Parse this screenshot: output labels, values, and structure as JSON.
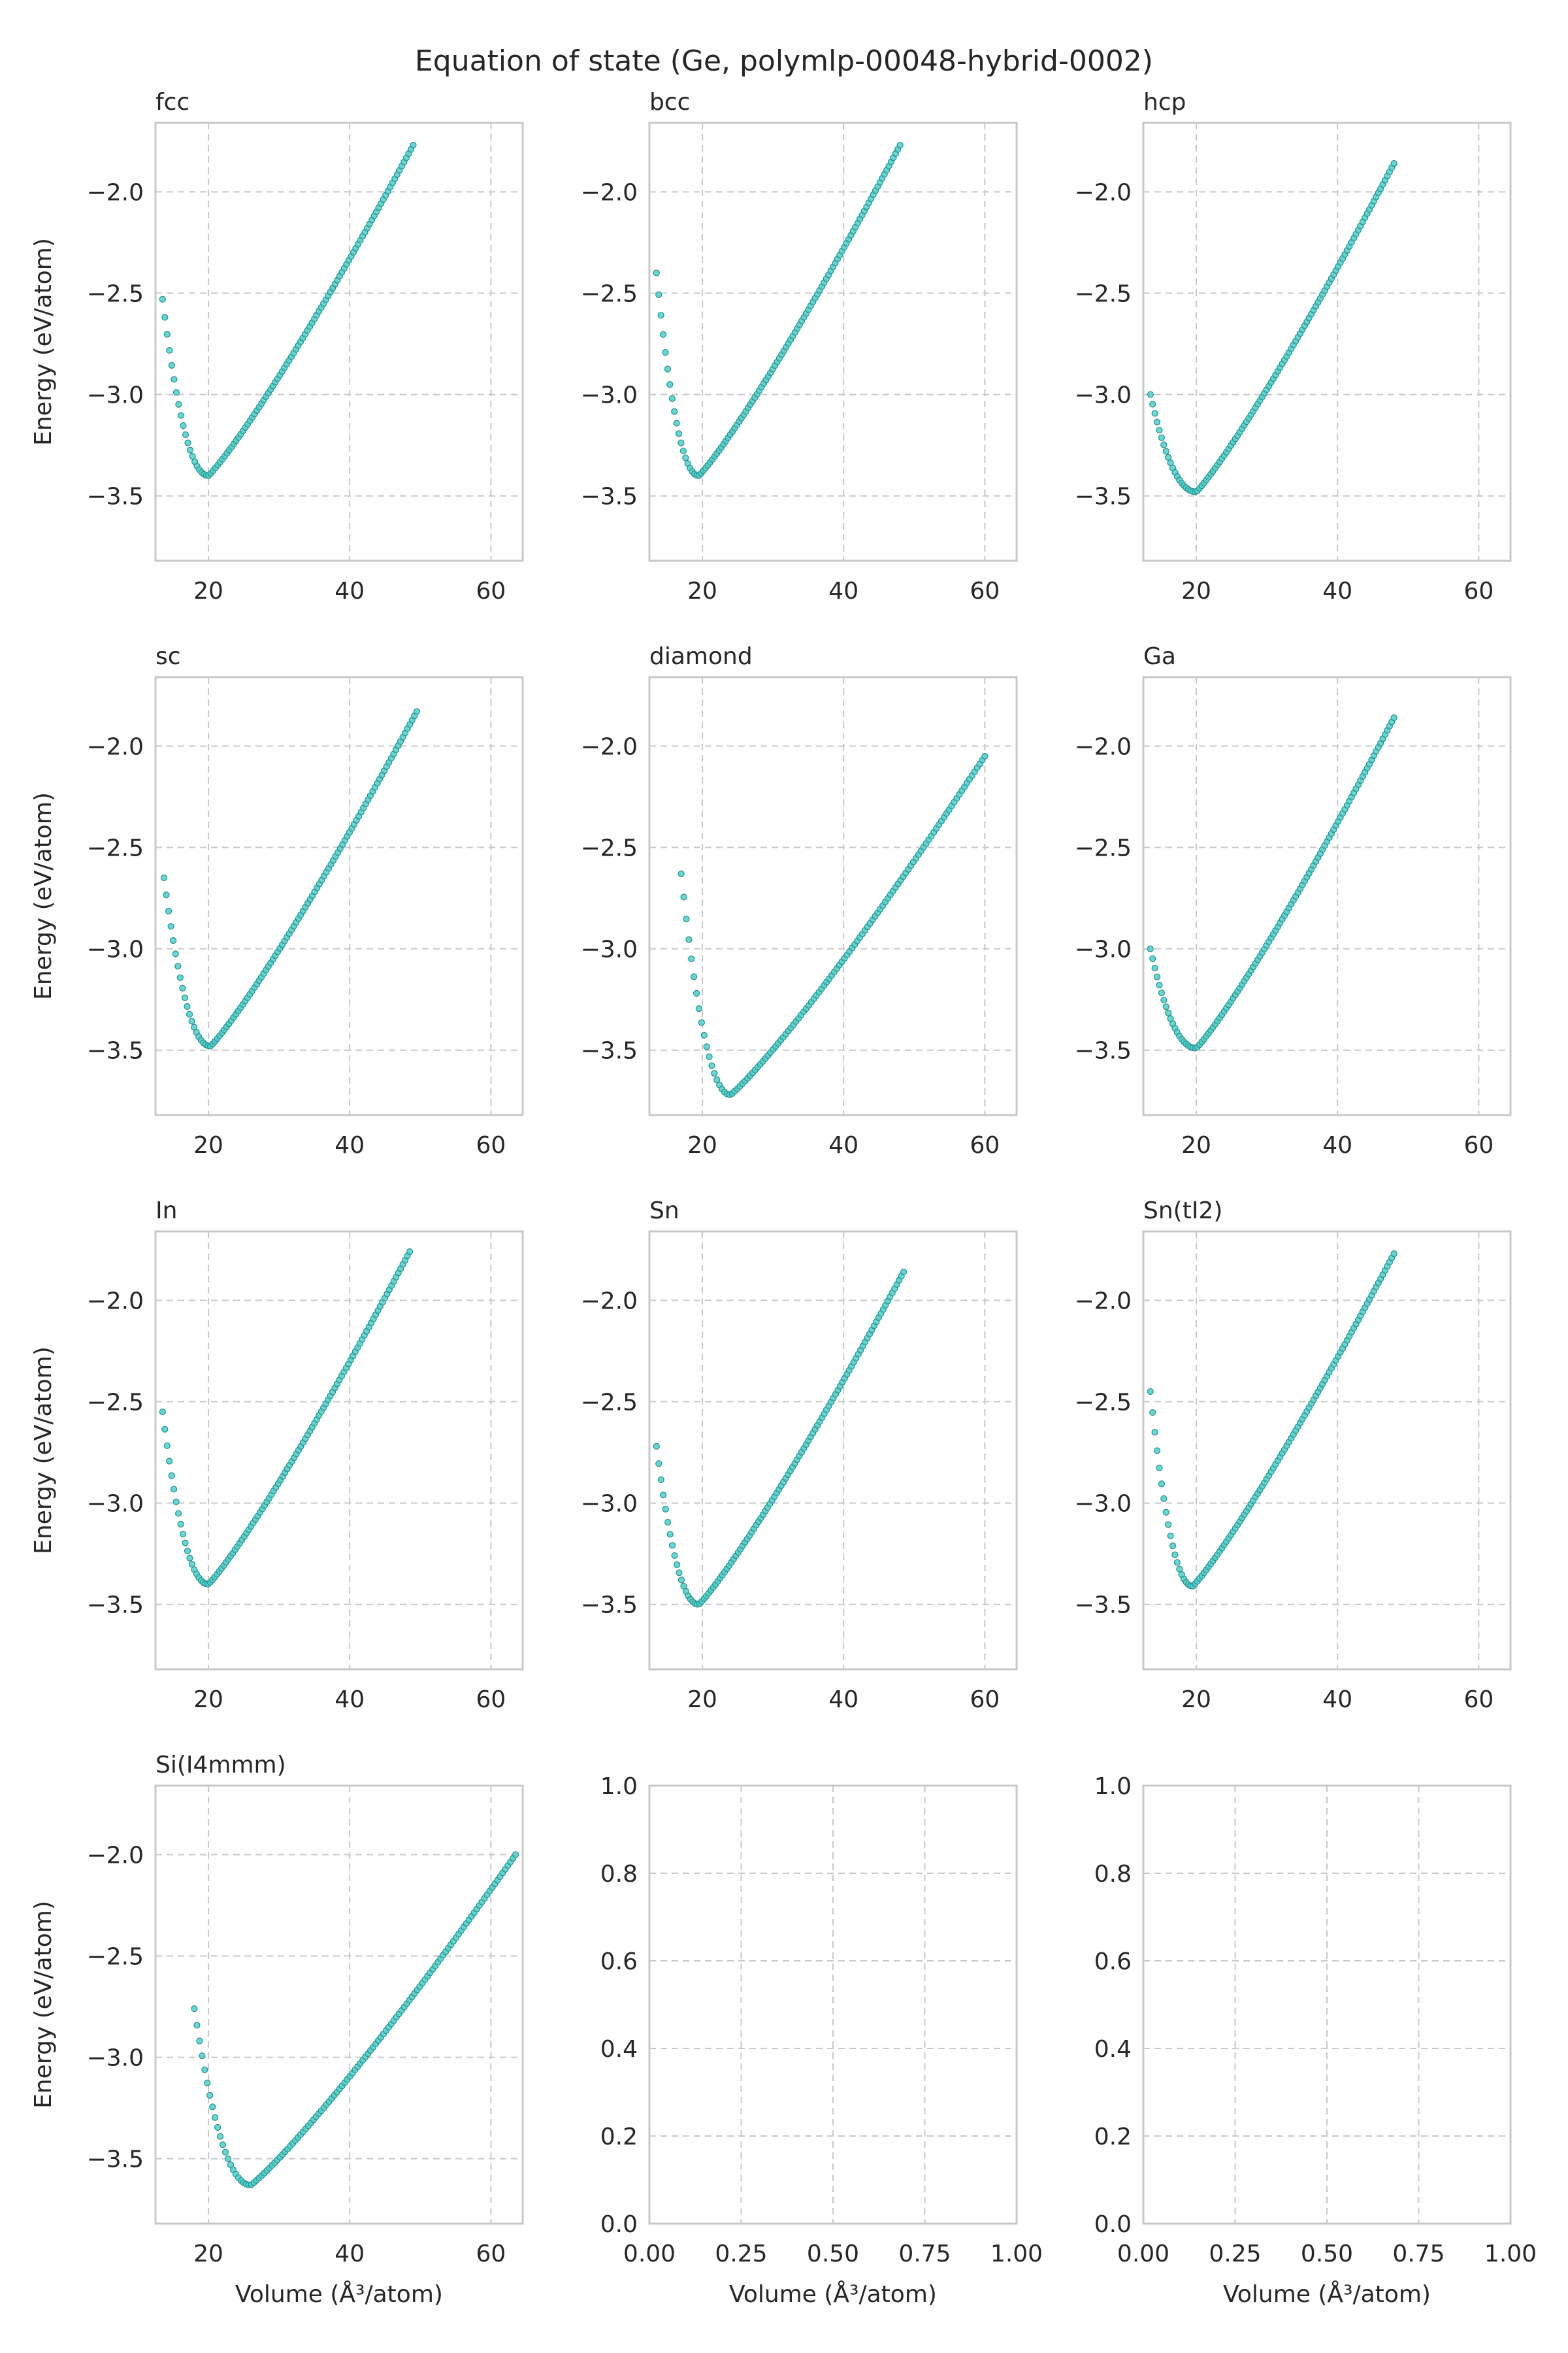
{
  "figure": {
    "title": "Equation of state (Ge, polymlp-00048-hybrid-0002)",
    "xlabel": "Volume (Å$^3$/atom)",
    "xlabel_display": "Volume (Å³/atom)",
    "ylabel": "Energy (eV/atom)"
  },
  "colors": {
    "marker_fill": "#48d1cc",
    "marker_edge": "#2a8f8a",
    "grid": "#c8c8c8",
    "frame": "#c8c8c8"
  },
  "chart_data": [
    {
      "type": "scatter",
      "title": "fcc",
      "xlim": [
        12.5,
        64.5
      ],
      "ylim": [
        -3.82,
        -1.66
      ],
      "xticks": [
        20,
        40,
        60
      ],
      "yticks": [
        -3.5,
        -3.0,
        -2.5,
        -2.0
      ],
      "grid": true,
      "points": {
        "xmin": 13.5,
        "xmax": 49.0,
        "e0": -3.4,
        "v0": 20.0,
        "emax": -1.77,
        "eleft": -2.53,
        "n": 110
      }
    },
    {
      "type": "scatter",
      "title": "bcc",
      "xlim": [
        12.5,
        64.5
      ],
      "ylim": [
        -3.82,
        -1.66
      ],
      "xticks": [
        20,
        40,
        60
      ],
      "yticks": [
        -3.5,
        -3.0,
        -2.5,
        -2.0
      ],
      "grid": true,
      "points": {
        "xmin": 13.5,
        "xmax": 48.0,
        "e0": -3.4,
        "v0": 19.5,
        "emax": -1.77,
        "eleft": -2.4,
        "n": 110
      }
    },
    {
      "type": "scatter",
      "title": "hcp",
      "xlim": [
        12.5,
        64.5
      ],
      "ylim": [
        -3.82,
        -1.66
      ],
      "xticks": [
        20,
        40,
        60
      ],
      "yticks": [
        -3.5,
        -3.0,
        -2.5,
        -2.0
      ],
      "grid": true,
      "points": {
        "xmin": 13.5,
        "xmax": 48.0,
        "e0": -3.48,
        "v0": 20.0,
        "emax": -1.86,
        "eleft": -3.0,
        "n": 110
      }
    },
    {
      "type": "scatter",
      "title": "sc",
      "xlim": [
        12.5,
        64.5
      ],
      "ylim": [
        -3.82,
        -1.66
      ],
      "xticks": [
        20,
        40,
        60
      ],
      "yticks": [
        -3.5,
        -3.0,
        -2.5,
        -2.0
      ],
      "grid": true,
      "points": {
        "xmin": 13.7,
        "xmax": 49.5,
        "e0": -3.48,
        "v0": 20.3,
        "emax": -1.83,
        "eleft": -2.65,
        "n": 110
      }
    },
    {
      "type": "scatter",
      "title": "diamond",
      "xlim": [
        12.5,
        64.5
      ],
      "ylim": [
        -3.82,
        -1.66
      ],
      "xticks": [
        20,
        40,
        60
      ],
      "yticks": [
        -3.5,
        -3.0,
        -2.5,
        -2.0
      ],
      "grid": true,
      "points": {
        "xmin": 17.0,
        "xmax": 60.0,
        "e0": -3.72,
        "v0": 24.0,
        "emax": -2.05,
        "eleft": -2.63,
        "n": 120
      }
    },
    {
      "type": "scatter",
      "title": "Ga",
      "xlim": [
        12.5,
        64.5
      ],
      "ylim": [
        -3.82,
        -1.66
      ],
      "xticks": [
        20,
        40,
        60
      ],
      "yticks": [
        -3.5,
        -3.0,
        -2.5,
        -2.0
      ],
      "grid": true,
      "points": {
        "xmin": 13.5,
        "xmax": 48.0,
        "e0": -3.49,
        "v0": 20.0,
        "emax": -1.86,
        "eleft": -3.0,
        "n": 110
      }
    },
    {
      "type": "scatter",
      "title": "In",
      "xlim": [
        12.5,
        64.5
      ],
      "ylim": [
        -3.82,
        -1.66
      ],
      "xticks": [
        20,
        40,
        60
      ],
      "yticks": [
        -3.5,
        -3.0,
        -2.5,
        -2.0
      ],
      "grid": true,
      "points": {
        "xmin": 13.5,
        "xmax": 48.5,
        "e0": -3.4,
        "v0": 20.0,
        "emax": -1.76,
        "eleft": -2.55,
        "n": 110
      }
    },
    {
      "type": "scatter",
      "title": "Sn",
      "xlim": [
        12.5,
        64.5
      ],
      "ylim": [
        -3.82,
        -1.66
      ],
      "xticks": [
        20,
        40,
        60
      ],
      "yticks": [
        -3.5,
        -3.0,
        -2.5,
        -2.0
      ],
      "grid": true,
      "points": {
        "xmin": 13.5,
        "xmax": 48.5,
        "e0": -3.5,
        "v0": 19.5,
        "emax": -1.86,
        "eleft": -2.72,
        "n": 110
      }
    },
    {
      "type": "scatter",
      "title": "Sn(tI2)",
      "xlim": [
        12.5,
        64.5
      ],
      "ylim": [
        -3.82,
        -1.66
      ],
      "xticks": [
        20,
        40,
        60
      ],
      "yticks": [
        -3.5,
        -3.0,
        -2.5,
        -2.0
      ],
      "grid": true,
      "points": {
        "xmin": 13.5,
        "xmax": 48.0,
        "e0": -3.41,
        "v0": 19.5,
        "emax": -1.77,
        "eleft": -2.45,
        "n": 110
      }
    },
    {
      "type": "scatter",
      "title": "Si(I4mmm)",
      "xlim": [
        12.5,
        64.5
      ],
      "ylim": [
        -3.82,
        -1.66
      ],
      "xticks": [
        20,
        40,
        60
      ],
      "yticks": [
        -3.5,
        -3.0,
        -2.5,
        -2.0
      ],
      "grid": true,
      "points": {
        "xmin": 18.0,
        "xmax": 63.5,
        "e0": -3.63,
        "v0": 26.0,
        "emax": -2.0,
        "eleft": -2.76,
        "n": 125
      }
    },
    {
      "type": "scatter",
      "title": "",
      "xlim": [
        0,
        1
      ],
      "ylim": [
        0,
        1
      ],
      "xticks": [
        0.0,
        0.25,
        0.5,
        0.75,
        1.0
      ],
      "yticks": [
        0.0,
        0.2,
        0.4,
        0.6,
        0.8,
        1.0
      ],
      "grid": true,
      "points": null
    },
    {
      "type": "scatter",
      "title": "",
      "xlim": [
        0,
        1
      ],
      "ylim": [
        0,
        1
      ],
      "xticks": [
        0.0,
        0.25,
        0.5,
        0.75,
        1.0
      ],
      "yticks": [
        0.0,
        0.2,
        0.4,
        0.6,
        0.8,
        1.0
      ],
      "grid": true,
      "points": null
    }
  ]
}
